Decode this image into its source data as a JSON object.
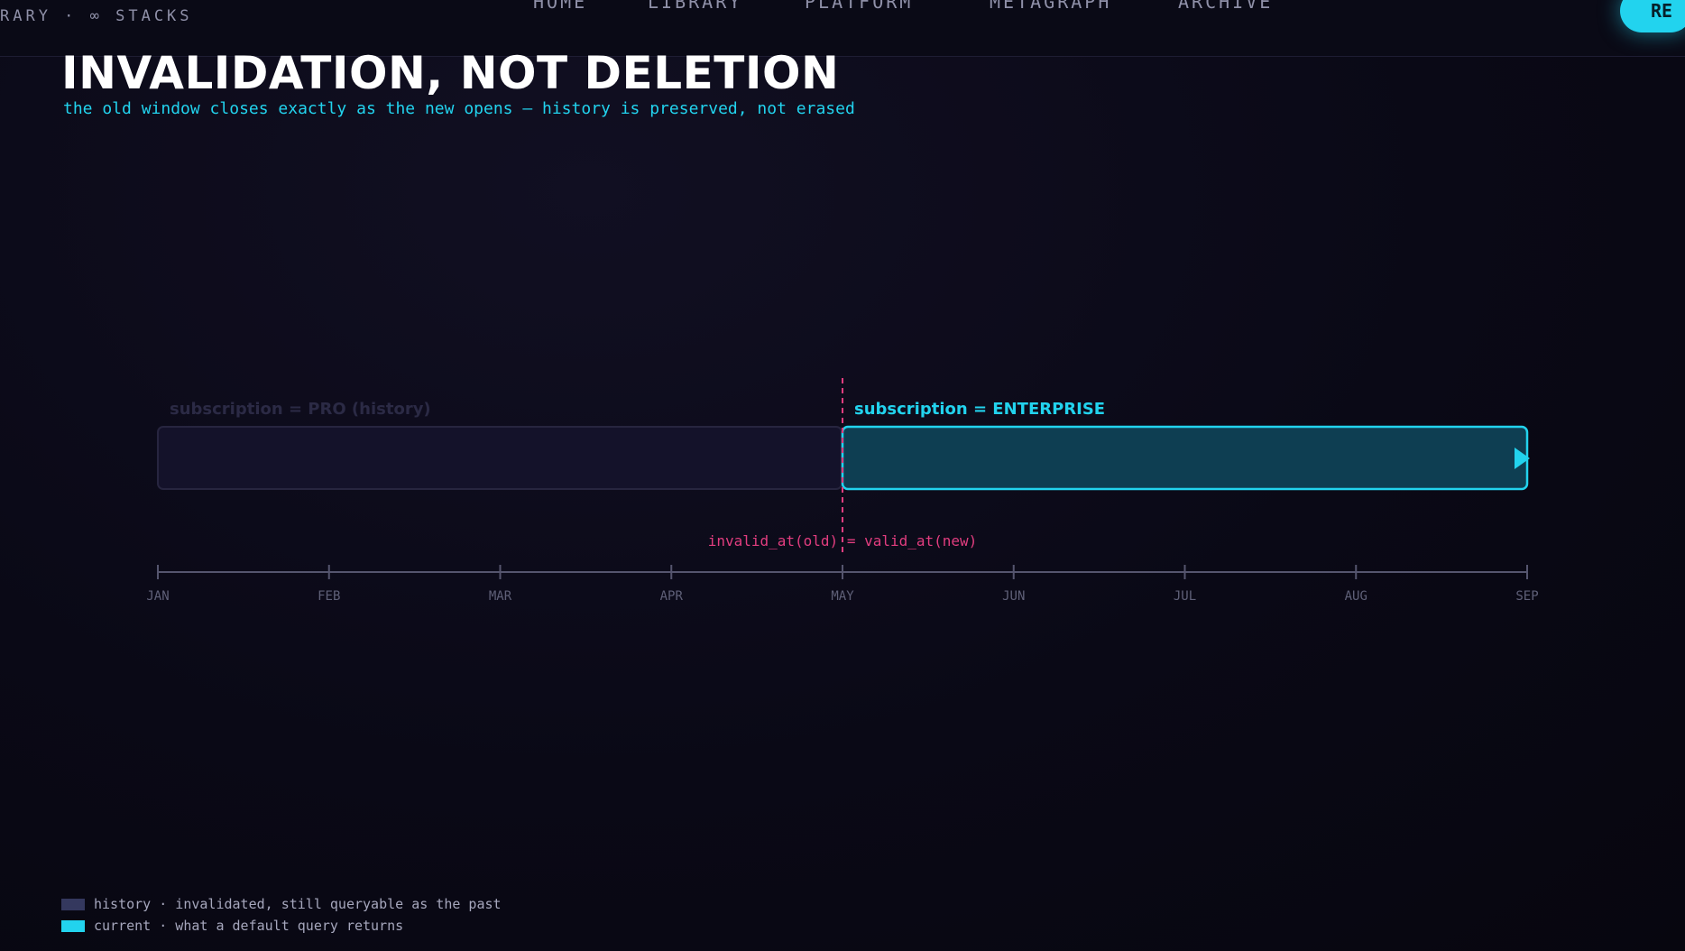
{
  "header": {
    "brand": "RARY · ∞ STACKS",
    "nav": [
      "HOME",
      "LIBRARY",
      "PLATFORM",
      "METAGRAPH",
      "ARCHIVE"
    ],
    "button": "RE"
  },
  "title": "INVALIDATION, NOT DELETION",
  "subtitle": "the old window closes exactly as the new opens — history is preserved, not erased",
  "timeline": {
    "history_label": "subscription = PRO (history)",
    "current_label": "subscription = ENTERPRISE",
    "annotation": "invalid_at(old) = valid_at(new)",
    "months": [
      "JAN",
      "FEB",
      "MAR",
      "APR",
      "MAY",
      "JUN",
      "JUL",
      "AUG",
      "SEP"
    ]
  },
  "legend": [
    "history · invalidated, still queryable as the past",
    "current · what a default query returns"
  ]
}
